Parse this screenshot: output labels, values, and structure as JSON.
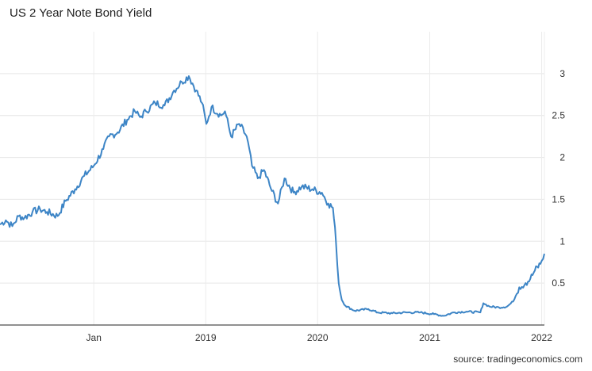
{
  "chart_data": {
    "type": "line",
    "title": "US 2 Year Note Bond Yield",
    "source": "source: tradingeconomics.com",
    "x_start": "2017-03-01",
    "x_end": "2022-01-10",
    "x_tick_labels": [
      {
        "date": "2018-01-01",
        "label": "Jan"
      },
      {
        "date": "2019-01-01",
        "label": "2019"
      },
      {
        "date": "2020-01-01",
        "label": "2020"
      },
      {
        "date": "2021-01-01",
        "label": "2021"
      },
      {
        "date": "2022-01-01",
        "label": "2022"
      }
    ],
    "y_ticks": [
      0.5,
      1,
      1.5,
      2,
      2.5,
      3
    ],
    "ylim": [
      0,
      3.5
    ],
    "grid": true,
    "line_color": "#3d85c6",
    "series": [
      {
        "points": [
          [
            "2017-03-01",
            1.2
          ],
          [
            "2017-03-20",
            1.25
          ],
          [
            "2017-04-10",
            1.18
          ],
          [
            "2017-05-01",
            1.3
          ],
          [
            "2017-05-20",
            1.28
          ],
          [
            "2017-06-15",
            1.35
          ],
          [
            "2017-07-10",
            1.38
          ],
          [
            "2017-08-01",
            1.35
          ],
          [
            "2017-09-05",
            1.3
          ],
          [
            "2017-10-01",
            1.48
          ],
          [
            "2017-11-01",
            1.62
          ],
          [
            "2017-12-01",
            1.78
          ],
          [
            "2018-01-01",
            1.9
          ],
          [
            "2018-02-01",
            2.1
          ],
          [
            "2018-02-20",
            2.25
          ],
          [
            "2018-03-20",
            2.3
          ],
          [
            "2018-04-20",
            2.45
          ],
          [
            "2018-05-15",
            2.55
          ],
          [
            "2018-06-01",
            2.48
          ],
          [
            "2018-06-20",
            2.55
          ],
          [
            "2018-07-20",
            2.65
          ],
          [
            "2018-08-20",
            2.62
          ],
          [
            "2018-09-20",
            2.8
          ],
          [
            "2018-10-15",
            2.9
          ],
          [
            "2018-11-07",
            2.97
          ],
          [
            "2018-12-01",
            2.8
          ],
          [
            "2018-12-20",
            2.65
          ],
          [
            "2019-01-03",
            2.4
          ],
          [
            "2019-01-20",
            2.6
          ],
          [
            "2019-02-20",
            2.5
          ],
          [
            "2019-03-05",
            2.55
          ],
          [
            "2019-03-25",
            2.25
          ],
          [
            "2019-04-20",
            2.4
          ],
          [
            "2019-05-15",
            2.25
          ],
          [
            "2019-06-01",
            1.9
          ],
          [
            "2019-06-20",
            1.75
          ],
          [
            "2019-07-10",
            1.85
          ],
          [
            "2019-08-05",
            1.6
          ],
          [
            "2019-08-25",
            1.45
          ],
          [
            "2019-09-15",
            1.75
          ],
          [
            "2019-10-15",
            1.58
          ],
          [
            "2019-11-10",
            1.65
          ],
          [
            "2019-12-15",
            1.62
          ],
          [
            "2020-01-15",
            1.58
          ],
          [
            "2020-02-05",
            1.45
          ],
          [
            "2020-02-20",
            1.4
          ],
          [
            "2020-03-01",
            1.0
          ],
          [
            "2020-03-10",
            0.5
          ],
          [
            "2020-03-20",
            0.3
          ],
          [
            "2020-04-01",
            0.23
          ],
          [
            "2020-05-01",
            0.17
          ],
          [
            "2020-06-15",
            0.19
          ],
          [
            "2020-07-15",
            0.15
          ],
          [
            "2020-09-01",
            0.14
          ],
          [
            "2020-10-15",
            0.15
          ],
          [
            "2020-12-01",
            0.15
          ],
          [
            "2021-01-15",
            0.13
          ],
          [
            "2021-02-15",
            0.11
          ],
          [
            "2021-03-20",
            0.15
          ],
          [
            "2021-05-01",
            0.16
          ],
          [
            "2021-06-15",
            0.15
          ],
          [
            "2021-06-25",
            0.26
          ],
          [
            "2021-07-15",
            0.22
          ],
          [
            "2021-08-15",
            0.21
          ],
          [
            "2021-09-10",
            0.22
          ],
          [
            "2021-09-30",
            0.28
          ],
          [
            "2021-10-20",
            0.45
          ],
          [
            "2021-11-10",
            0.5
          ],
          [
            "2021-11-25",
            0.55
          ],
          [
            "2021-12-10",
            0.65
          ],
          [
            "2021-12-28",
            0.73
          ],
          [
            "2022-01-10",
            0.85
          ]
        ]
      }
    ]
  }
}
